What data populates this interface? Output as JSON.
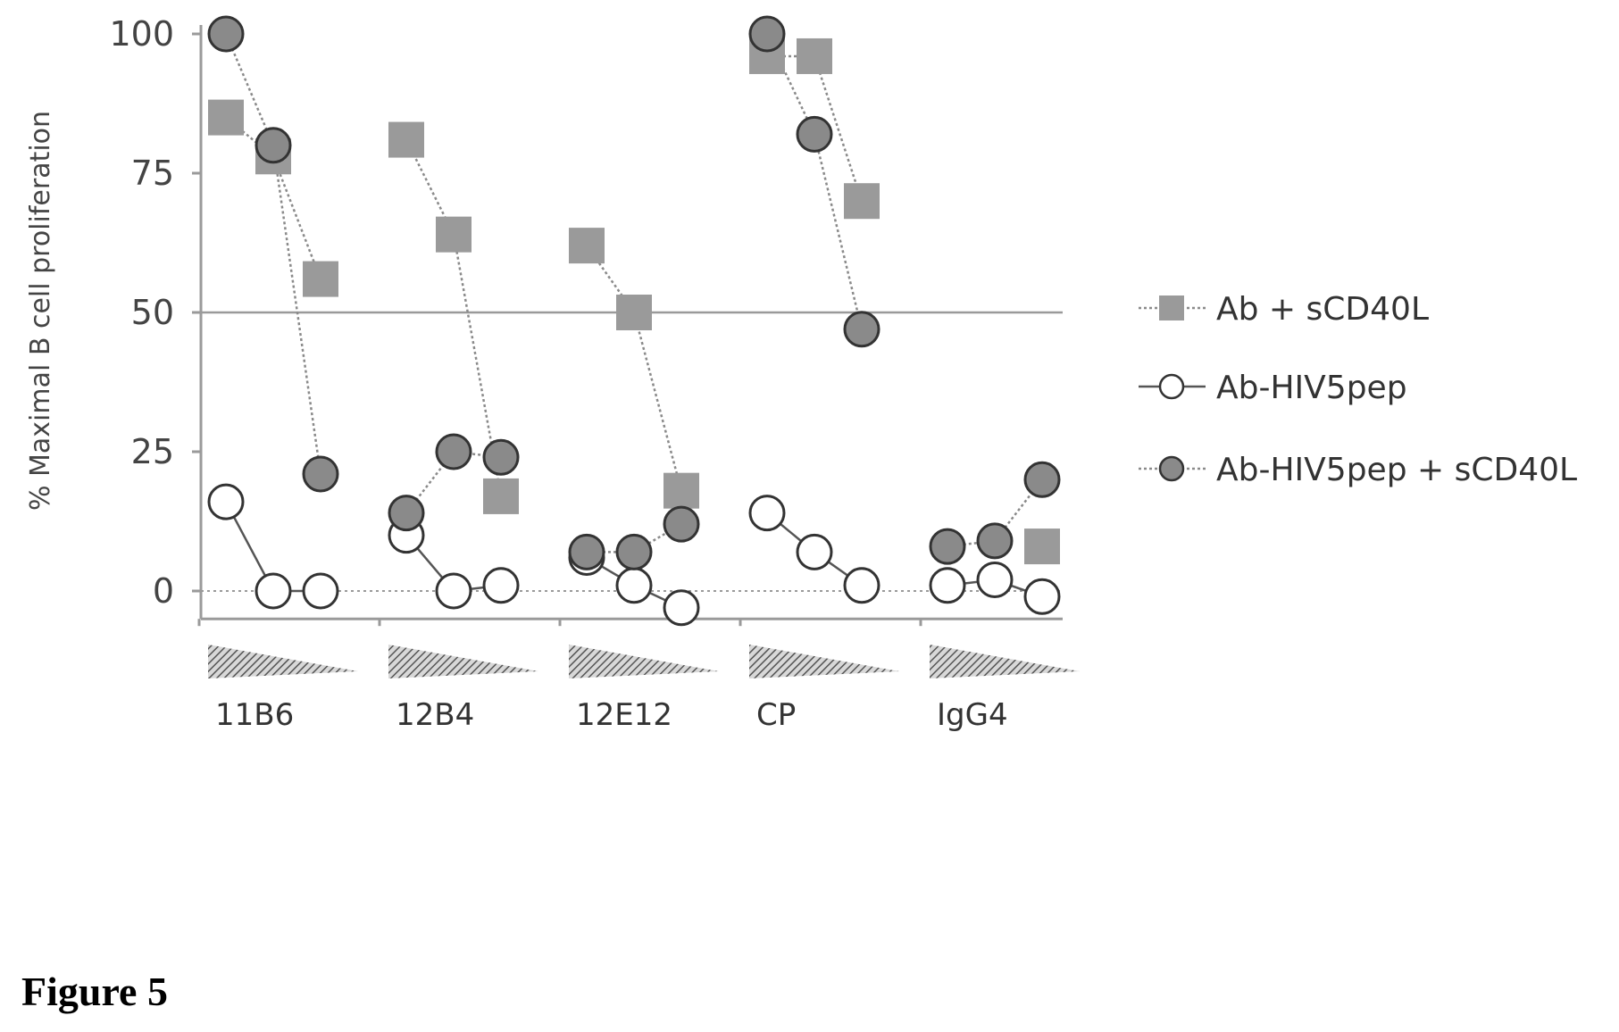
{
  "figure_label": "Figure 5",
  "chart_data": {
    "type": "scatter",
    "ylabel": "% Maximal B cell proliferation",
    "ylim": [
      -5,
      100
    ],
    "yticks": [
      0,
      25,
      50,
      75,
      100
    ],
    "reference_line": 50,
    "categories": [
      "11B6",
      "12B4",
      "12E12",
      "CP",
      "IgG4"
    ],
    "points_per_category": 3,
    "dose_indicator": "decreasing concentration",
    "legend_position": "right",
    "colors": {
      "squares": "#9a9a9a",
      "open_circle_fill": "#ffffff",
      "filled_circle": "#8a8a8a",
      "line": "#555555",
      "dashed_line": "#8a8a8a",
      "axis": "#9a9a9a"
    },
    "series": [
      {
        "name": "Ab + sCD40L",
        "marker": "square",
        "line": "dotted",
        "values": [
          [
            85,
            78,
            56
          ],
          [
            81,
            64,
            17
          ],
          [
            62,
            50,
            18
          ],
          [
            96,
            96,
            70
          ],
          [
            null,
            null,
            8
          ]
        ]
      },
      {
        "name": "Ab-HIV5pep",
        "marker": "open-circle",
        "line": "solid",
        "values": [
          [
            16,
            0,
            0
          ],
          [
            10,
            0,
            1
          ],
          [
            6,
            1,
            -3
          ],
          [
            14,
            7,
            1
          ],
          [
            1,
            2,
            -1
          ]
        ]
      },
      {
        "name": "Ab-HIV5pep + sCD40L",
        "marker": "filled-circle",
        "line": "dotted",
        "values": [
          [
            100,
            80,
            21
          ],
          [
            14,
            25,
            24
          ],
          [
            7,
            7,
            12
          ],
          [
            100,
            82,
            47
          ],
          [
            8,
            9,
            20
          ]
        ]
      }
    ]
  }
}
